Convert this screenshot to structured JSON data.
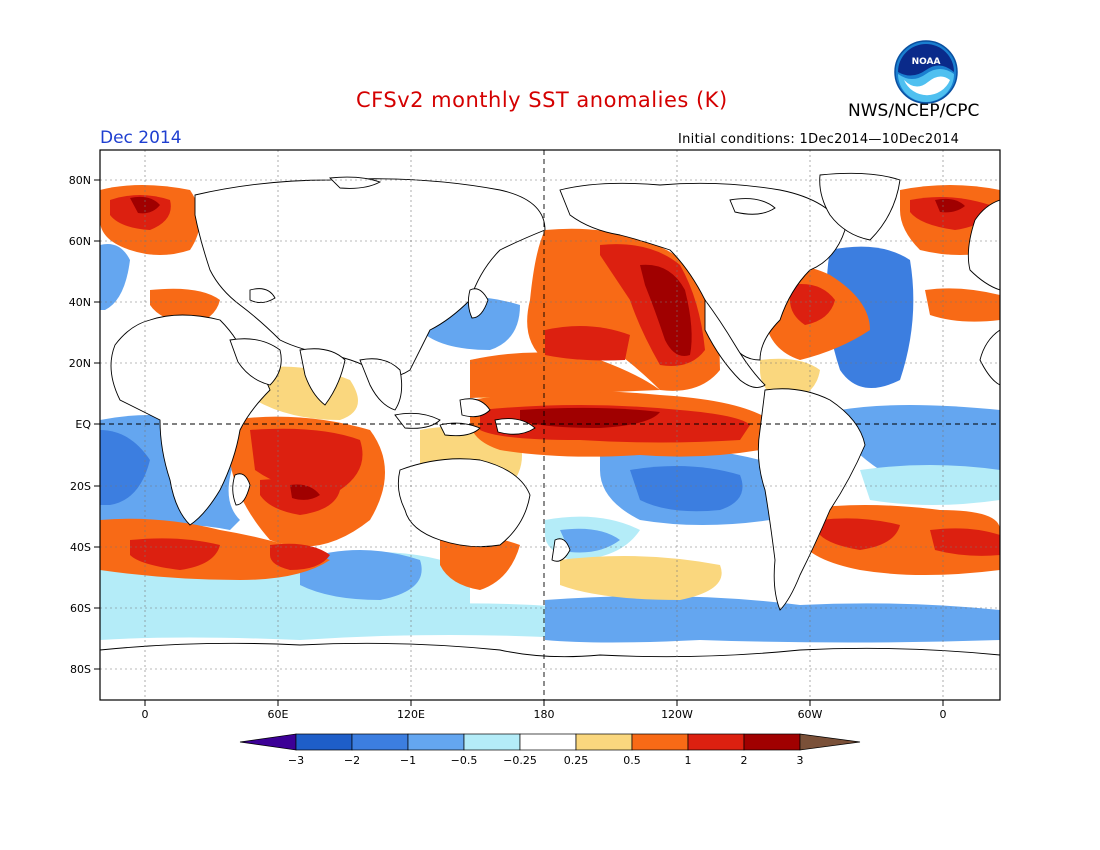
{
  "header": {
    "title": "CFSv2 monthly SST anomalies (K)",
    "agency": "NWS/NCEP/CPC",
    "month": "Dec 2014",
    "initial_conditions": "Initial conditions: 1Dec2014—10Dec2014",
    "logo_text": "NOAA"
  },
  "axes": {
    "lat_labels": [
      "80N",
      "60N",
      "40N",
      "20N",
      "EQ",
      "20S",
      "40S",
      "60S",
      "80S"
    ],
    "lon_labels": [
      "0",
      "60E",
      "120E",
      "180",
      "120W",
      "60W",
      "0"
    ]
  },
  "colorbar": {
    "labels": [
      "−3",
      "−2",
      "−1",
      "−0.5",
      "−0.25",
      "0.25",
      "0.5",
      "1",
      "2",
      "3"
    ],
    "colors": {
      "lt_m3": "#3c0096",
      "m3_m2": "#1e5ec8",
      "m2_m1": "#3c7ee0",
      "m1_m05": "#64a6f0",
      "m05_m025": "#b4ecf8",
      "neutral": "#ffffff",
      "p025_p05": "#fad77e",
      "p05_p1": "#f86a16",
      "p1_p2": "#dc2010",
      "p2_p3": "#a00000",
      "gt_p3": "#7a5038"
    }
  },
  "map": {
    "ocean_anomaly_field": "sea surface temperature anomaly",
    "land_color": "#ffffff",
    "coastline_color": "#000000"
  }
}
